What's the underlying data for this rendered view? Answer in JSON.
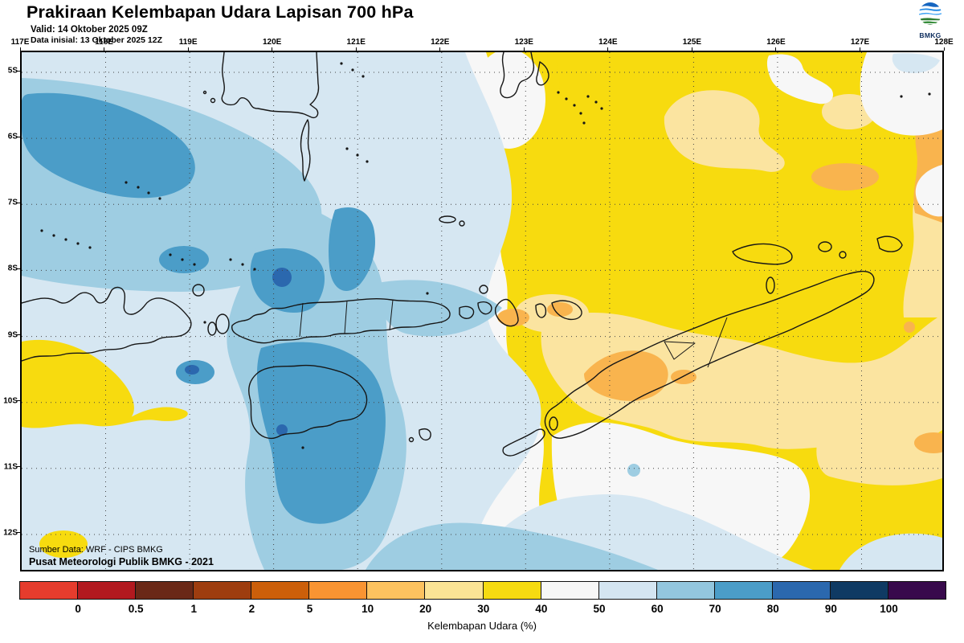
{
  "header": {
    "title": "Prakiraan Kelembapan Udara Lapisan 700 hPa",
    "valid_line": "Valid: 14 Oktober 2025 09Z",
    "init_line": "Data inisial: 13 Oktober 2025 12Z",
    "logo_text": "BMKG"
  },
  "map": {
    "lon_labels": [
      "117E",
      "118E",
      "119E",
      "120E",
      "121E",
      "122E",
      "123E",
      "124E",
      "125E",
      "126E",
      "127E",
      "128E"
    ],
    "lat_labels": [
      "5S",
      "6S",
      "7S",
      "8S",
      "9S",
      "10S",
      "11S",
      "12S"
    ],
    "source_line1": "Sumber Data: WRF - CIPS BMKG",
    "source_line2": "Pusat Meteorologi Publik BMKG - 2021"
  },
  "colorbar": {
    "tick_labels": [
      "0",
      "0.5",
      "1",
      "2",
      "5",
      "10",
      "20",
      "30",
      "40",
      "50",
      "60",
      "70",
      "80",
      "90",
      "100"
    ],
    "segment_colors": [
      "#e63c2d",
      "#b2191f",
      "#6a2817",
      "#9e3d0f",
      "#cc5f0a",
      "#f99432",
      "#fcc25f",
      "#fbe495",
      "#f6db11",
      "#f7f7f7",
      "#d4e5f1",
      "#93c6de",
      "#4b9dc8",
      "#2b68ae",
      "#0f3a63",
      "#380a4c"
    ],
    "caption": "Kelembapan Udara (%)"
  },
  "palette": {
    "white": "#f7f7f7",
    "lblue": "#d6e7f2",
    "mblue": "#9ecde2",
    "dblue": "#4b9dc8",
    "xblue": "#2b68ae",
    "yellow": "#f7db0f",
    "pyellow": "#fbe4a0",
    "orange": "#f9b44e",
    "logo_blue": "#1565c0",
    "logo_green": "#2e7d32"
  }
}
